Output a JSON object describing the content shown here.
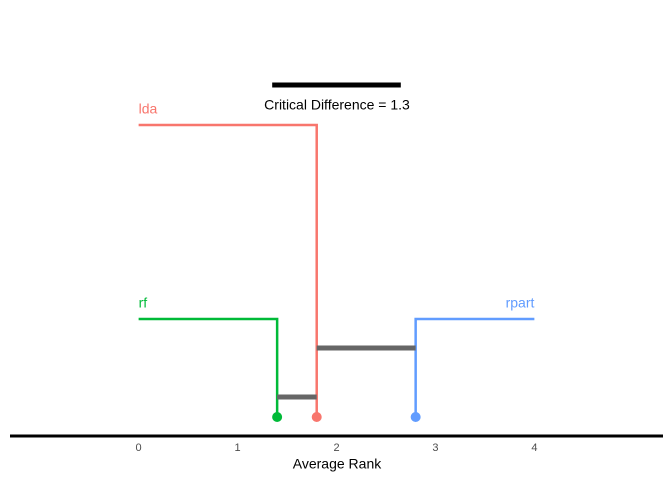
{
  "chart_data": {
    "type": "critical-difference",
    "title": "Critical Difference = 1.3",
    "cd": 1.3,
    "categories": [
      "lda",
      "rf",
      "rpart"
    ],
    "values": [
      1.8,
      1.4,
      2.8
    ],
    "colors": [
      "#f8766d",
      "#00ba38",
      "#619cff"
    ],
    "x_label": "Average Rank",
    "xlim": [
      -1.3,
      5.3
    ],
    "xticks": [
      0,
      1,
      2,
      3,
      4
    ]
  }
}
